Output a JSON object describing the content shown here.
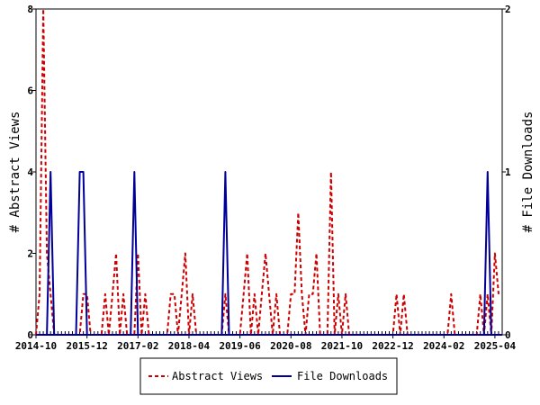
{
  "chart_data": {
    "type": "line",
    "x_axis": {
      "tick_labels": [
        "2014-10",
        "2015-12",
        "2017-02",
        "2018-04",
        "2019-06",
        "2020-08",
        "2021-10",
        "2022-12",
        "2024-02",
        "2025-04"
      ],
      "x_range": [
        "2014-10",
        "2025-06"
      ]
    },
    "y_left": {
      "label": "# Abstract Views",
      "ticks": [
        0,
        2,
        4,
        6,
        8
      ],
      "ylim": [
        0,
        8
      ]
    },
    "y_right": {
      "label": "# File Downloads",
      "ticks": [
        0,
        1,
        2
      ],
      "ylim": [
        0,
        2
      ]
    },
    "legend": {
      "placement": "bottom-center"
    },
    "series": [
      {
        "name": "Abstract Views",
        "axis": "left",
        "color": "#cc0000",
        "style": "dashed",
        "points": [
          [
            "2014-10",
            0
          ],
          [
            "2014-11",
            1
          ],
          [
            "2014-12",
            8
          ],
          [
            "2015-01",
            2
          ],
          [
            "2015-02",
            1
          ],
          [
            "2015-03",
            0
          ],
          [
            "2015-10",
            0
          ],
          [
            "2015-11",
            1
          ],
          [
            "2015-12",
            1
          ],
          [
            "2016-01",
            0
          ],
          [
            "2016-04",
            0
          ],
          [
            "2016-05",
            1
          ],
          [
            "2016-06",
            0
          ],
          [
            "2016-07",
            1
          ],
          [
            "2016-08",
            2
          ],
          [
            "2016-09",
            0
          ],
          [
            "2016-10",
            1
          ],
          [
            "2016-11",
            0
          ],
          [
            "2017-01",
            0
          ],
          [
            "2017-02",
            2
          ],
          [
            "2017-03",
            0
          ],
          [
            "2017-04",
            1
          ],
          [
            "2017-05",
            0
          ],
          [
            "2017-10",
            0
          ],
          [
            "2017-11",
            1
          ],
          [
            "2017-12",
            1
          ],
          [
            "2018-01",
            0
          ],
          [
            "2018-02",
            1
          ],
          [
            "2018-03",
            2
          ],
          [
            "2018-04",
            0
          ],
          [
            "2018-05",
            1
          ],
          [
            "2018-06",
            0
          ],
          [
            "2019-01",
            0
          ],
          [
            "2019-02",
            1
          ],
          [
            "2019-03",
            0
          ],
          [
            "2019-06",
            0
          ],
          [
            "2019-07",
            1
          ],
          [
            "2019-08",
            2
          ],
          [
            "2019-09",
            0
          ],
          [
            "2019-10",
            1
          ],
          [
            "2019-11",
            0
          ],
          [
            "2019-12",
            1
          ],
          [
            "2020-01",
            2
          ],
          [
            "2020-02",
            1
          ],
          [
            "2020-03",
            0
          ],
          [
            "2020-04",
            1
          ],
          [
            "2020-05",
            0
          ],
          [
            "2020-07",
            0
          ],
          [
            "2020-08",
            1
          ],
          [
            "2020-09",
            1
          ],
          [
            "2020-10",
            3
          ],
          [
            "2020-11",
            1
          ],
          [
            "2020-12",
            0
          ],
          [
            "2021-01",
            1
          ],
          [
            "2021-02",
            1
          ],
          [
            "2021-03",
            2
          ],
          [
            "2021-04",
            0
          ],
          [
            "2021-06",
            0
          ],
          [
            "2021-07",
            4
          ],
          [
            "2021-08",
            0
          ],
          [
            "2021-09",
            1
          ],
          [
            "2021-10",
            0
          ],
          [
            "2021-11",
            1
          ],
          [
            "2021-12",
            0
          ],
          [
            "2022-12",
            0
          ],
          [
            "2023-01",
            1
          ],
          [
            "2023-02",
            0
          ],
          [
            "2023-03",
            1
          ],
          [
            "2023-04",
            0
          ],
          [
            "2024-03",
            0
          ],
          [
            "2024-04",
            1
          ],
          [
            "2024-05",
            0
          ],
          [
            "2024-11",
            0
          ],
          [
            "2024-12",
            1
          ],
          [
            "2025-01",
            0
          ],
          [
            "2025-02",
            1
          ],
          [
            "2025-03",
            0
          ],
          [
            "2025-04",
            2
          ],
          [
            "2025-05",
            1
          ]
        ]
      },
      {
        "name": "File Downloads",
        "axis": "right",
        "color": "#000099",
        "style": "solid",
        "points": [
          [
            "2015-01",
            0
          ],
          [
            "2015-02",
            1
          ],
          [
            "2015-03",
            0
          ],
          [
            "2015-09",
            0
          ],
          [
            "2015-10",
            1
          ],
          [
            "2015-11",
            1
          ],
          [
            "2015-12",
            0
          ],
          [
            "2016-12",
            0
          ],
          [
            "2017-01",
            1
          ],
          [
            "2017-02",
            0
          ],
          [
            "2019-01",
            0
          ],
          [
            "2019-02",
            1
          ],
          [
            "2019-03",
            0
          ],
          [
            "2025-01",
            0
          ],
          [
            "2025-02",
            1
          ],
          [
            "2025-03",
            0
          ]
        ]
      }
    ]
  }
}
